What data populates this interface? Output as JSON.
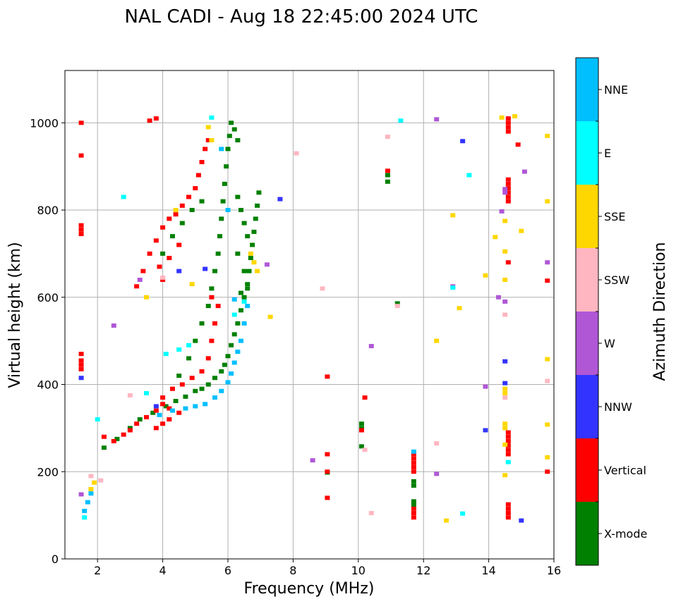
{
  "chart_data": {
    "type": "scatter",
    "title": "NAL CADI - Aug 18 22:45:00 2024 UTC",
    "xlabel": "Frequency (MHz)",
    "ylabel": "Virtual height (km)",
    "xlim": [
      1,
      16
    ],
    "ylim": [
      0,
      1120
    ],
    "xticks": [
      2,
      4,
      6,
      8,
      10,
      12,
      14,
      16
    ],
    "yticks": [
      0,
      200,
      400,
      600,
      800,
      1000
    ],
    "grid": true,
    "colorbar": {
      "label": "Azimuth Direction",
      "categories": [
        {
          "name": "X-mode",
          "color": "#008000"
        },
        {
          "name": "Vertical",
          "color": "#ff0000"
        },
        {
          "name": "NNW",
          "color": "#3333ff"
        },
        {
          "name": "W",
          "color": "#b057d6"
        },
        {
          "name": "SSW",
          "color": "#ffb6c1"
        },
        {
          "name": "SSE",
          "color": "#ffd700"
        },
        {
          "name": "E",
          "color": "#00ffff"
        },
        {
          "name": "NNE",
          "color": "#00bfff"
        }
      ]
    },
    "series": [
      {
        "name": "X-mode",
        "points": [
          [
            2.2,
            255
          ],
          [
            2.6,
            275
          ],
          [
            3.0,
            300
          ],
          [
            3.3,
            320
          ],
          [
            3.7,
            335
          ],
          [
            4.1,
            350
          ],
          [
            4.4,
            362
          ],
          [
            4.7,
            372
          ],
          [
            5.0,
            385
          ],
          [
            5.2,
            390
          ],
          [
            5.4,
            400
          ],
          [
            5.6,
            415
          ],
          [
            5.8,
            430
          ],
          [
            5.9,
            445
          ],
          [
            6.0,
            465
          ],
          [
            6.1,
            490
          ],
          [
            6.2,
            515
          ],
          [
            6.3,
            540
          ],
          [
            6.4,
            570
          ],
          [
            6.5,
            600
          ],
          [
            6.6,
            630
          ],
          [
            6.65,
            660
          ],
          [
            6.7,
            690
          ],
          [
            6.75,
            720
          ],
          [
            6.8,
            750
          ],
          [
            6.85,
            780
          ],
          [
            6.9,
            810
          ],
          [
            6.95,
            840
          ],
          [
            4.5,
            420
          ],
          [
            4.8,
            460
          ],
          [
            5.0,
            500
          ],
          [
            5.2,
            540
          ],
          [
            5.4,
            580
          ],
          [
            5.5,
            620
          ],
          [
            5.6,
            660
          ],
          [
            5.7,
            700
          ],
          [
            5.75,
            740
          ],
          [
            5.8,
            780
          ],
          [
            5.85,
            820
          ],
          [
            5.9,
            860
          ],
          [
            5.95,
            900
          ],
          [
            6.0,
            940
          ],
          [
            6.05,
            970
          ],
          [
            6.1,
            1000
          ],
          [
            6.2,
            985
          ],
          [
            6.3,
            960
          ],
          [
            4.0,
            700
          ],
          [
            4.3,
            740
          ],
          [
            4.6,
            770
          ],
          [
            4.9,
            800
          ],
          [
            5.2,
            820
          ],
          [
            6.3,
            830
          ],
          [
            6.4,
            800
          ],
          [
            6.5,
            770
          ],
          [
            6.6,
            740
          ],
          [
            6.3,
            700
          ],
          [
            6.5,
            660
          ],
          [
            6.6,
            620
          ],
          [
            6.4,
            610
          ],
          [
            10.1,
            310
          ],
          [
            10.1,
            300
          ],
          [
            10.1,
            258
          ],
          [
            10.9,
            880
          ],
          [
            10.9,
            865
          ],
          [
            11.2,
            586
          ],
          [
            11.7,
            178
          ],
          [
            11.7,
            168
          ],
          [
            11.7,
            132
          ],
          [
            11.7,
            123
          ],
          [
            9.05,
            198
          ]
        ]
      },
      {
        "name": "Vertical",
        "points": [
          [
            1.5,
            1000
          ],
          [
            1.5,
            925
          ],
          [
            1.5,
            765
          ],
          [
            1.5,
            755
          ],
          [
            1.5,
            745
          ],
          [
            1.5,
            470
          ],
          [
            1.5,
            455
          ],
          [
            1.5,
            445
          ],
          [
            1.5,
            435
          ],
          [
            2.2,
            280
          ],
          [
            2.5,
            270
          ],
          [
            2.8,
            285
          ],
          [
            3.0,
            295
          ],
          [
            3.2,
            310
          ],
          [
            3.5,
            325
          ],
          [
            3.8,
            340
          ],
          [
            4.0,
            355
          ],
          [
            4.2,
            345
          ],
          [
            4.5,
            335
          ],
          [
            4.2,
            320
          ],
          [
            4.0,
            310
          ],
          [
            3.8,
            300
          ],
          [
            4.0,
            370
          ],
          [
            4.3,
            390
          ],
          [
            4.6,
            400
          ],
          [
            4.9,
            415
          ],
          [
            5.2,
            430
          ],
          [
            5.4,
            460
          ],
          [
            5.5,
            500
          ],
          [
            5.6,
            540
          ],
          [
            5.7,
            580
          ],
          [
            5.5,
            600
          ],
          [
            3.2,
            625
          ],
          [
            3.4,
            660
          ],
          [
            3.6,
            700
          ],
          [
            3.8,
            730
          ],
          [
            4.0,
            760
          ],
          [
            4.2,
            780
          ],
          [
            4.4,
            790
          ],
          [
            4.6,
            810
          ],
          [
            4.8,
            830
          ],
          [
            5.0,
            850
          ],
          [
            5.1,
            880
          ],
          [
            5.2,
            910
          ],
          [
            5.3,
            940
          ],
          [
            5.4,
            960
          ],
          [
            3.6,
            1005
          ],
          [
            3.8,
            1010
          ],
          [
            3.9,
            670
          ],
          [
            4.2,
            690
          ],
          [
            4.5,
            720
          ],
          [
            4.0,
            640
          ],
          [
            9.05,
            418
          ],
          [
            9.05,
            240
          ],
          [
            9.05,
            200
          ],
          [
            9.05,
            140
          ],
          [
            10.1,
            295
          ],
          [
            10.2,
            370
          ],
          [
            10.9,
            890
          ],
          [
            11.7,
            240
          ],
          [
            11.7,
            230
          ],
          [
            11.7,
            220
          ],
          [
            11.7,
            210
          ],
          [
            11.7,
            200
          ],
          [
            11.7,
            115
          ],
          [
            11.7,
            105
          ],
          [
            11.7,
            95
          ],
          [
            14.6,
            1010
          ],
          [
            14.6,
            1000
          ],
          [
            14.6,
            990
          ],
          [
            14.6,
            980
          ],
          [
            14.6,
            870
          ],
          [
            14.6,
            860
          ],
          [
            14.6,
            850
          ],
          [
            14.6,
            840
          ],
          [
            14.6,
            830
          ],
          [
            14.6,
            820
          ],
          [
            14.6,
            680
          ],
          [
            14.6,
            290
          ],
          [
            14.6,
            280
          ],
          [
            14.6,
            270
          ],
          [
            14.6,
            260
          ],
          [
            14.6,
            250
          ],
          [
            14.6,
            240
          ],
          [
            14.6,
            125
          ],
          [
            14.6,
            115
          ],
          [
            14.6,
            105
          ],
          [
            14.6,
            95
          ],
          [
            14.9,
            950
          ],
          [
            15.8,
            638
          ],
          [
            15.8,
            200
          ]
        ]
      },
      {
        "name": "NNW",
        "points": [
          [
            1.5,
            415
          ],
          [
            3.8,
            350
          ],
          [
            4.5,
            660
          ],
          [
            5.3,
            665
          ],
          [
            7.6,
            825
          ],
          [
            13.2,
            958
          ],
          [
            14.5,
            453
          ],
          [
            14.5,
            403
          ],
          [
            13.9,
            295
          ],
          [
            15.0,
            88
          ]
        ]
      },
      {
        "name": "W",
        "points": [
          [
            1.5,
            148
          ],
          [
            2.5,
            535
          ],
          [
            3.3,
            640
          ],
          [
            7.2,
            675
          ],
          [
            8.6,
            226
          ],
          [
            10.4,
            488
          ],
          [
            12.4,
            1008
          ],
          [
            12.4,
            195
          ],
          [
            12.9,
            625
          ],
          [
            13.9,
            395
          ],
          [
            14.3,
            600
          ],
          [
            14.4,
            797
          ],
          [
            14.5,
            848
          ],
          [
            14.5,
            840
          ],
          [
            14.5,
            590
          ],
          [
            15.1,
            888
          ],
          [
            15.8,
            680
          ]
        ]
      },
      {
        "name": "SSW",
        "points": [
          [
            1.8,
            190
          ],
          [
            2.1,
            180
          ],
          [
            3.0,
            375
          ],
          [
            4.0,
            645
          ],
          [
            8.1,
            930
          ],
          [
            8.9,
            620
          ],
          [
            10.2,
            250
          ],
          [
            10.4,
            105
          ],
          [
            10.9,
            968
          ],
          [
            11.2,
            580
          ],
          [
            12.4,
            265
          ],
          [
            14.5,
            560
          ],
          [
            14.5,
            370
          ],
          [
            15.8,
            408
          ]
        ]
      },
      {
        "name": "SSE",
        "points": [
          [
            1.9,
            175
          ],
          [
            1.8,
            160
          ],
          [
            3.5,
            600
          ],
          [
            4.4,
            800
          ],
          [
            4.9,
            630
          ],
          [
            5.4,
            990
          ],
          [
            5.5,
            960
          ],
          [
            6.7,
            700
          ],
          [
            6.8,
            680
          ],
          [
            6.9,
            660
          ],
          [
            7.3,
            555
          ],
          [
            12.4,
            500
          ],
          [
            12.7,
            88
          ],
          [
            12.9,
            788
          ],
          [
            13.1,
            575
          ],
          [
            13.9,
            650
          ],
          [
            14.2,
            738
          ],
          [
            14.4,
            1012
          ],
          [
            14.5,
            775
          ],
          [
            14.5,
            705
          ],
          [
            14.5,
            640
          ],
          [
            14.5,
            390
          ],
          [
            14.5,
            380
          ],
          [
            14.5,
            310
          ],
          [
            14.5,
            300
          ],
          [
            14.5,
            262
          ],
          [
            14.5,
            192
          ],
          [
            14.8,
            1015
          ],
          [
            15.0,
            752
          ],
          [
            15.8,
            970
          ],
          [
            15.8,
            820
          ],
          [
            15.8,
            458
          ],
          [
            15.8,
            308
          ],
          [
            15.8,
            233
          ]
        ]
      },
      {
        "name": "E",
        "points": [
          [
            1.6,
            95
          ],
          [
            2.0,
            320
          ],
          [
            2.8,
            830
          ],
          [
            3.5,
            380
          ],
          [
            4.1,
            470
          ],
          [
            4.5,
            480
          ],
          [
            4.8,
            490
          ],
          [
            5.5,
            1012
          ],
          [
            6.2,
            560
          ],
          [
            6.5,
            590
          ],
          [
            11.3,
            1005
          ],
          [
            12.9,
            622
          ],
          [
            13.2,
            104
          ],
          [
            13.4,
            880
          ],
          [
            14.6,
            222
          ]
        ]
      },
      {
        "name": "NNE",
        "points": [
          [
            1.6,
            110
          ],
          [
            1.7,
            130
          ],
          [
            1.8,
            150
          ],
          [
            3.9,
            330
          ],
          [
            4.3,
            340
          ],
          [
            4.7,
            345
          ],
          [
            5.0,
            350
          ],
          [
            5.3,
            355
          ],
          [
            5.6,
            370
          ],
          [
            5.8,
            385
          ],
          [
            6.0,
            405
          ],
          [
            6.1,
            425
          ],
          [
            6.2,
            450
          ],
          [
            6.3,
            475
          ],
          [
            6.4,
            500
          ],
          [
            6.5,
            540
          ],
          [
            6.6,
            580
          ],
          [
            6.2,
            595
          ],
          [
            6.0,
            800
          ],
          [
            5.8,
            940
          ],
          [
            11.7,
            246
          ]
        ]
      }
    ]
  }
}
